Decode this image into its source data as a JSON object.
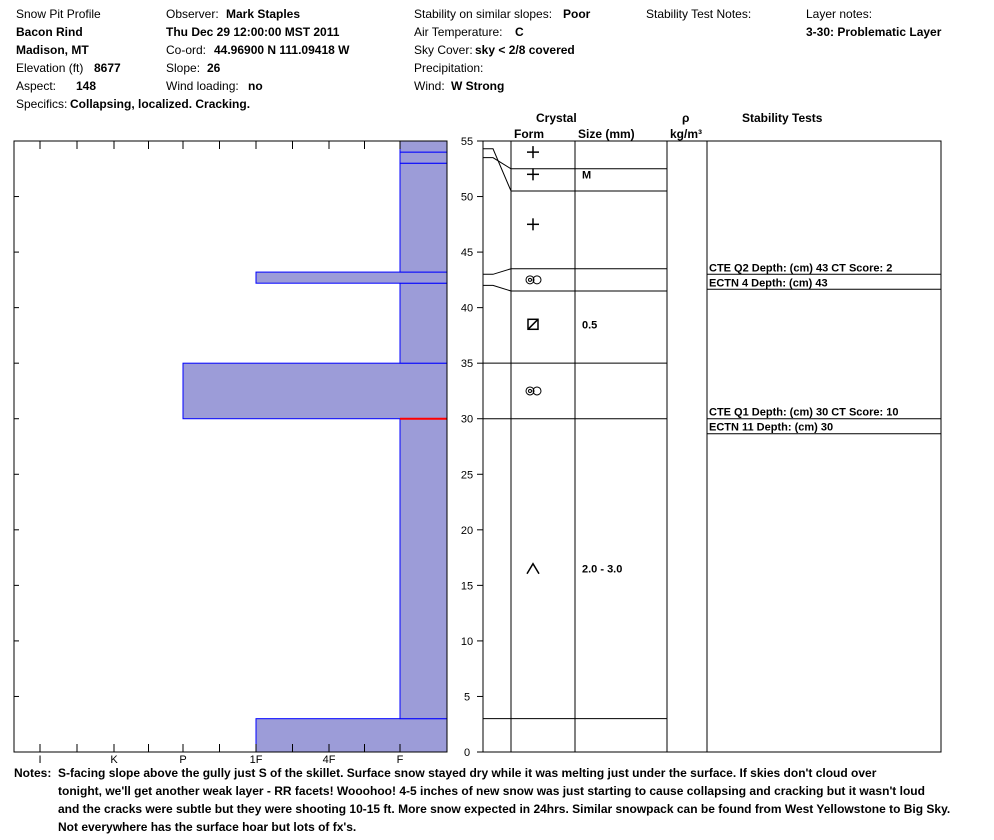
{
  "header": {
    "title": "Snow Pit Profile",
    "location": "Bacon Rind",
    "region": "Madison, MT",
    "elevation_label": "Elevation (ft)",
    "elevation_value": "8677",
    "aspect_label": "Aspect:",
    "aspect_value": "148",
    "specifics_label": "Specifics:",
    "specifics_value": "Collapsing, localized. Cracking.",
    "observer_label": "Observer:",
    "observer_value": "Mark Staples",
    "datetime": "Thu Dec 29 12:00:00 MST 2011",
    "coord_label": "Co-ord:",
    "coord_value": "44.96900 N 111.09418 W",
    "slope_label": "Slope:",
    "slope_value": "26",
    "wind_loading_label": "Wind loading:",
    "wind_loading_value": "no",
    "stability_label": "Stability on similar slopes:",
    "stability_value": "Poor",
    "air_temp_label": "Air Temperature:",
    "air_temp_value": "C",
    "sky_label": "Sky Cover:",
    "sky_value": "sky < 2/8 covered",
    "precip_label": "Precipitation:",
    "wind_label": "Wind:",
    "wind_value": "W Strong",
    "stability_notes_label": "Stability Test Notes:",
    "layer_notes_label": "Layer notes:",
    "layer_notes_value": "3-30: Problematic Layer"
  },
  "columns": {
    "crystal": "Crystal",
    "form": "Form",
    "size": "Size (mm)",
    "rho": "ρ",
    "density_unit": "kg/m³",
    "stability_tests": "Stability Tests"
  },
  "notes": {
    "label": "Notes:",
    "lines": [
      "S-facing slope above the gully just S of the skillet.  Surface snow stayed dry while it was melting just under the surface.  If skies don't cloud over",
      "tonight, we'll get another weak layer - RR facets!  Wooohoo!  4-5 inches of new snow was just starting to cause collapsing and cracking but it wasn't loud",
      "and the cracks were subtle but they were shooting 10-15 ft.  More snow expected in 24hrs.  Similar snowpack can be found from West Yellowstone to Big Sky.",
      "Not everywhere has the surface hoar but lots of fx's."
    ]
  },
  "chart_data": {
    "type": "bar",
    "orientation": "horizontal",
    "y_unit": "cm",
    "ylim": [
      0,
      55
    ],
    "y_ticks": [
      0,
      5,
      10,
      15,
      20,
      25,
      30,
      35,
      40,
      45,
      50,
      55
    ],
    "hardness_ticks": [
      "I",
      "K",
      "P",
      "1F",
      "4F",
      "F"
    ],
    "fill_color": "#9c9cd8",
    "boundary_color": "#0000ff",
    "highlight_color": "#ff0000",
    "highlight_depth": 30,
    "layers": [
      {
        "from": 0,
        "to": 3,
        "hardness": "1F"
      },
      {
        "from": 3,
        "to": 30,
        "hardness": "F"
      },
      {
        "from": 30,
        "to": 35,
        "hardness": "P"
      },
      {
        "from": 35,
        "to": 42.2,
        "hardness": "F"
      },
      {
        "from": 42.2,
        "to": 43.2,
        "hardness": "1F"
      },
      {
        "from": 43.2,
        "to": 53,
        "hardness": "F"
      },
      {
        "from": 53,
        "to": 54,
        "hardness": "F"
      },
      {
        "from": 54,
        "to": 55,
        "hardness": "F"
      }
    ],
    "crystal_layers": [
      {
        "from": 3,
        "to": 30,
        "form": "depth-hoar",
        "size": "2.0 - 3.0",
        "at": 16.5
      },
      {
        "from": 30,
        "to": 35,
        "form": "rounded",
        "size": "",
        "at": 32.5
      },
      {
        "from": 35,
        "to": 41.5,
        "form": "faceted",
        "size": "0.5",
        "at": 38.5
      },
      {
        "from": 41.5,
        "to": 43.5,
        "form": "rounded",
        "size": "",
        "at": 42.5
      },
      {
        "from": 43.5,
        "to": 50.5,
        "form": "new-snow",
        "size": "",
        "at": 47.5
      },
      {
        "from": 50.5,
        "to": 52.5,
        "form": "new-snow",
        "size": "M",
        "at": 52
      },
      {
        "from": 52.5,
        "to": 55,
        "form": "new-snow",
        "size": "",
        "at": 54
      }
    ],
    "stability_tests": [
      {
        "lines": [
          "CTE Q2 Depth: (cm) 43 CT Score: 2",
          "ECTN 4   Depth: (cm) 43"
        ],
        "depth": 43
      },
      {
        "lines": [
          "CTE Q1 Depth: (cm) 30 CT Score: 10",
          "ECTN 11   Depth: (cm) 30"
        ],
        "depth": 30
      }
    ]
  }
}
